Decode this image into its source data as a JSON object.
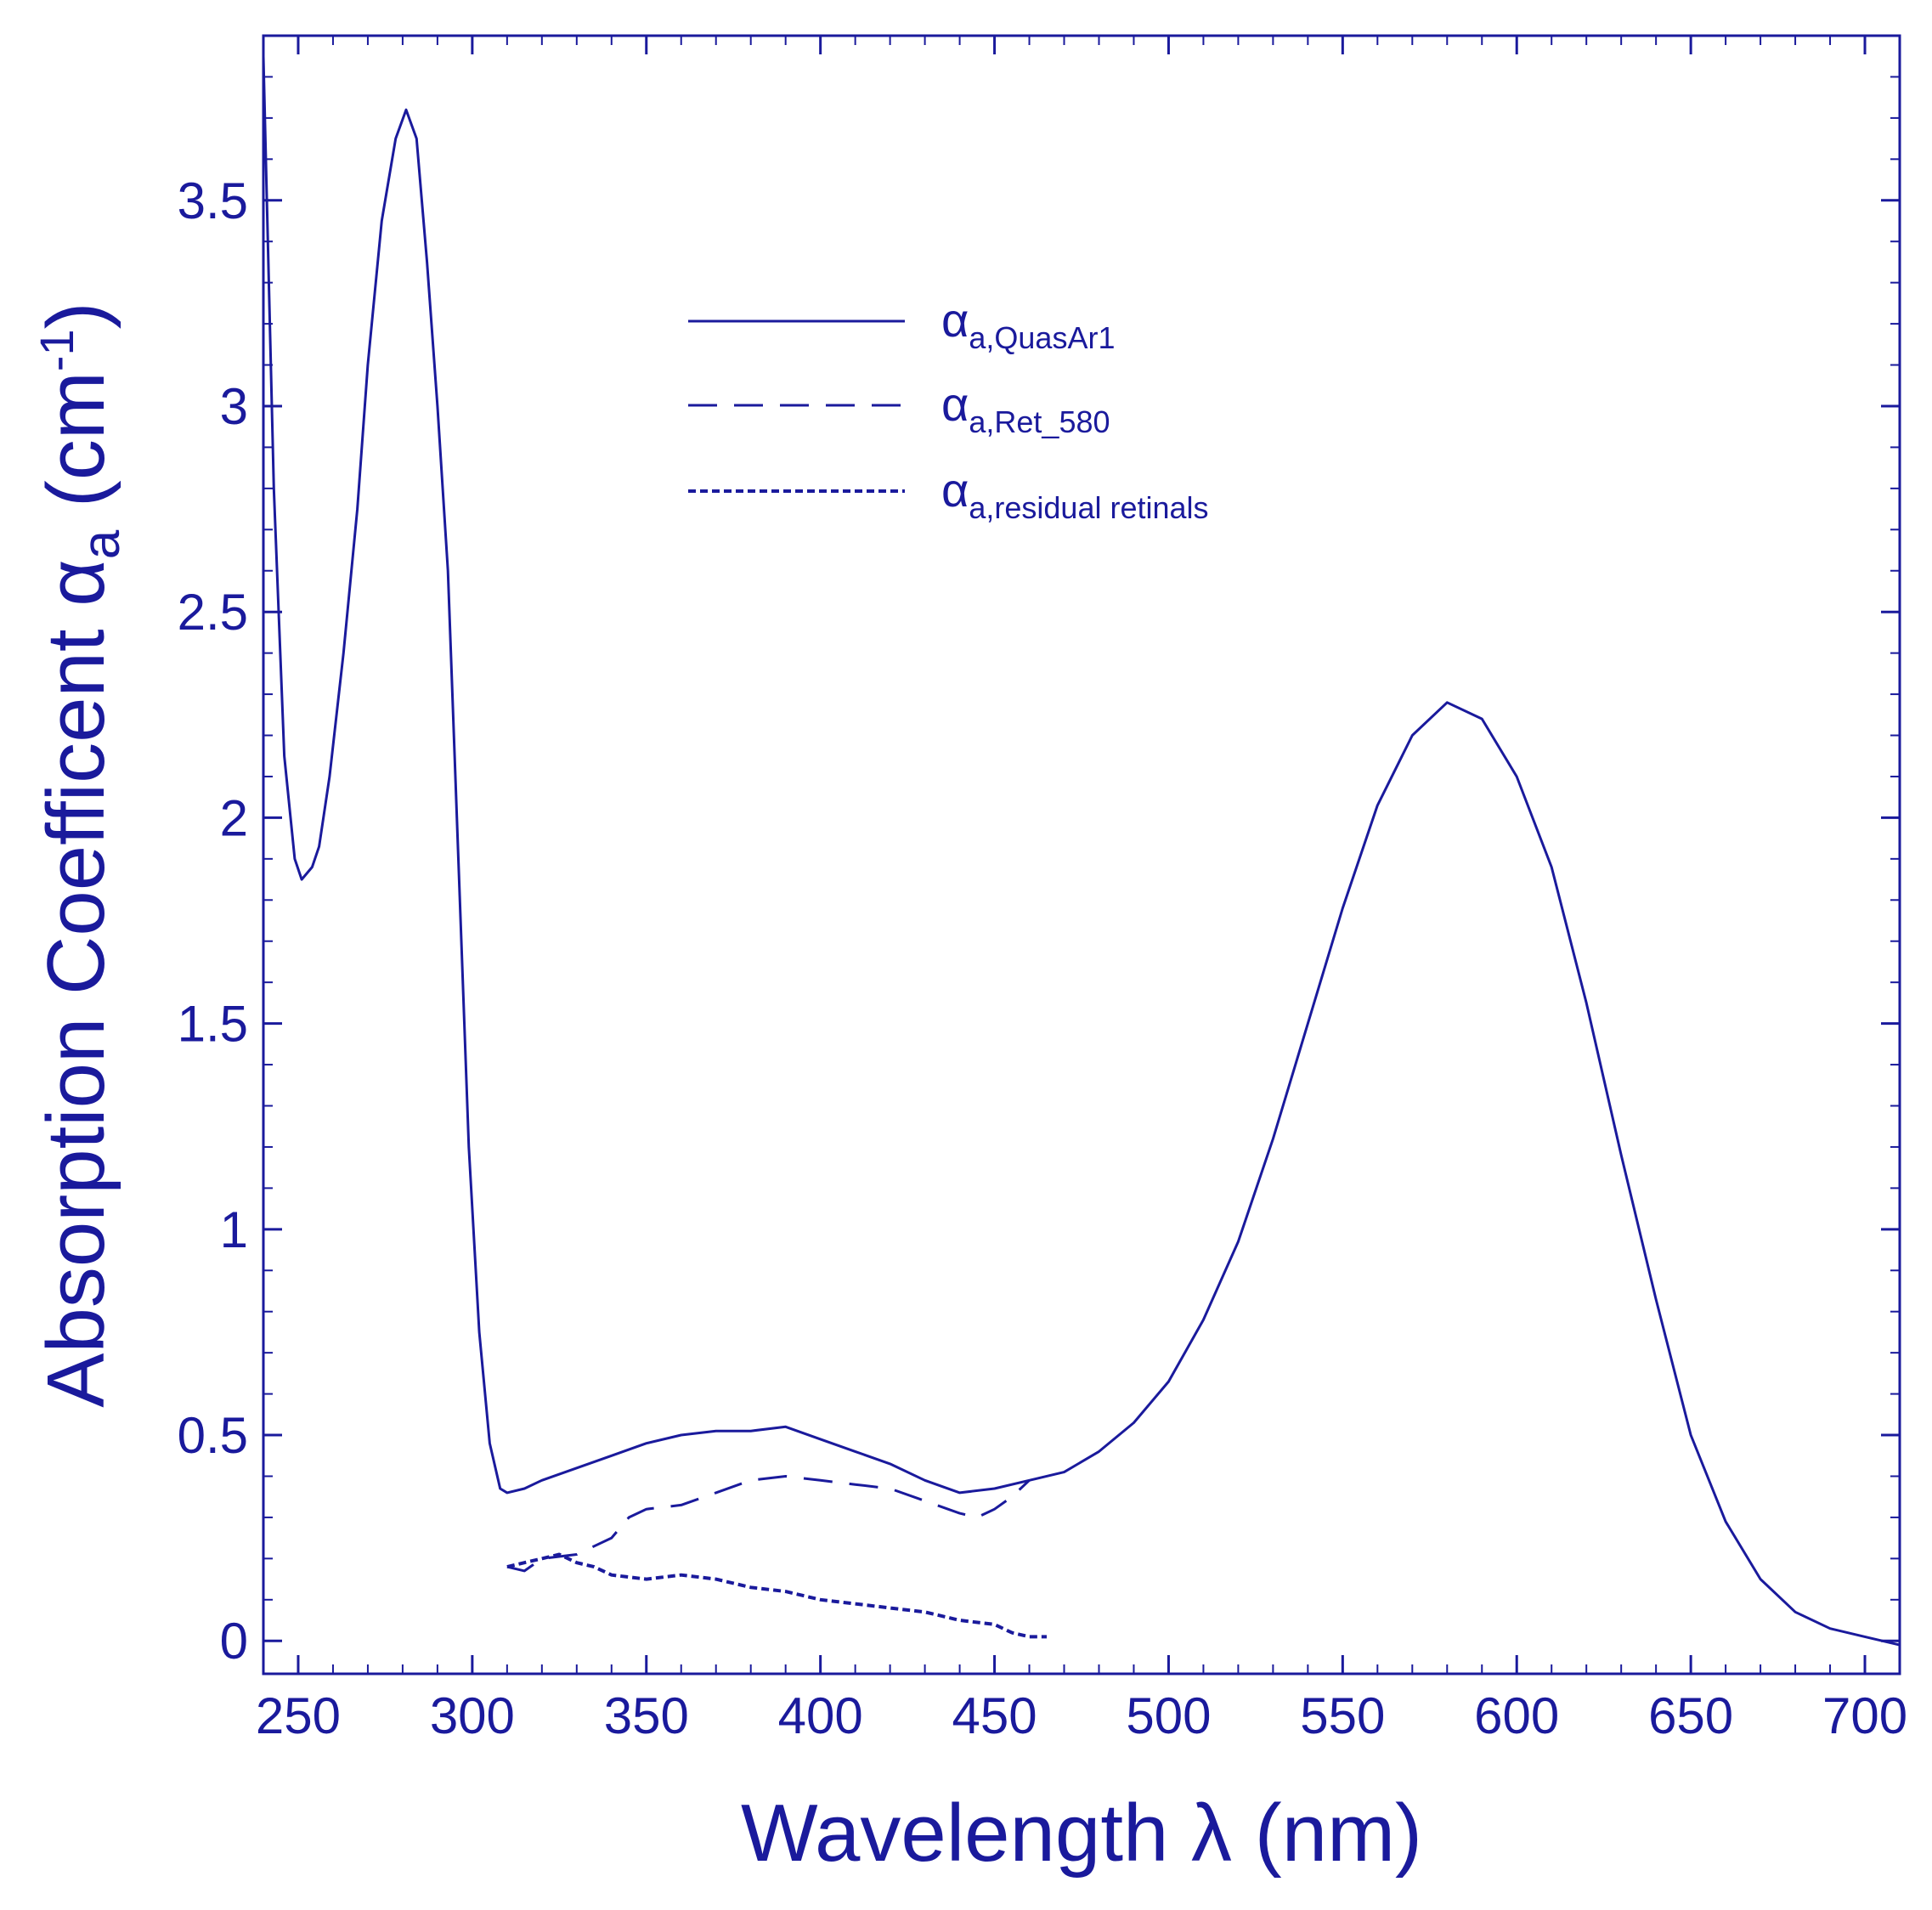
{
  "colors": {
    "ink": "#1a1a9c",
    "background": "#ffffff"
  },
  "chart_data": {
    "type": "line",
    "title": "",
    "xlabel": {
      "main": "Wavelength",
      "symbol": "λ",
      "unit": "(nm)"
    },
    "ylabel": {
      "main": "Absorption Coefficent",
      "symbol": "α",
      "symbol_sub": "a",
      "unit_open": "(cm",
      "unit_sup": "-1",
      "unit_close": ")"
    },
    "xlim": [
      240,
      710
    ],
    "ylim": [
      -0.08,
      3.9
    ],
    "grid": false,
    "legend_position": "top-center",
    "x_ticks": [
      250,
      300,
      350,
      400,
      450,
      500,
      550,
      600,
      650,
      700
    ],
    "x_tick_labels": [
      "250",
      "300",
      "350",
      "400",
      "450",
      "500",
      "550",
      "600",
      "650",
      "700"
    ],
    "y_ticks": [
      0,
      0.5,
      1,
      1.5,
      2,
      2.5,
      3,
      3.5
    ],
    "y_tick_labels": [
      "0",
      "0.5",
      "1",
      "1.5",
      "2",
      "2.5",
      "3",
      "3.5"
    ],
    "series": [
      {
        "name": "α_a,QuasAr1",
        "label_symbol": "α",
        "label_sub": "a,QuasAr1",
        "style": "solid",
        "points": [
          [
            240,
            3.85
          ],
          [
            241,
            3.5
          ],
          [
            243,
            2.8
          ],
          [
            246,
            2.15
          ],
          [
            249,
            1.9
          ],
          [
            251,
            1.85
          ],
          [
            254,
            1.88
          ],
          [
            256,
            1.93
          ],
          [
            259,
            2.1
          ],
          [
            263,
            2.4
          ],
          [
            267,
            2.75
          ],
          [
            270,
            3.1
          ],
          [
            274,
            3.45
          ],
          [
            278,
            3.65
          ],
          [
            281,
            3.72
          ],
          [
            284,
            3.65
          ],
          [
            287,
            3.35
          ],
          [
            290,
            3.0
          ],
          [
            293,
            2.6
          ],
          [
            296,
            1.9
          ],
          [
            299,
            1.2
          ],
          [
            302,
            0.75
          ],
          [
            305,
            0.48
          ],
          [
            308,
            0.37
          ],
          [
            310,
            0.36
          ],
          [
            315,
            0.37
          ],
          [
            320,
            0.39
          ],
          [
            330,
            0.42
          ],
          [
            340,
            0.45
          ],
          [
            350,
            0.48
          ],
          [
            360,
            0.5
          ],
          [
            370,
            0.51
          ],
          [
            380,
            0.51
          ],
          [
            390,
            0.52
          ],
          [
            400,
            0.49
          ],
          [
            410,
            0.46
          ],
          [
            420,
            0.43
          ],
          [
            430,
            0.39
          ],
          [
            440,
            0.36
          ],
          [
            450,
            0.37
          ],
          [
            460,
            0.39
          ],
          [
            470,
            0.41
          ],
          [
            480,
            0.46
          ],
          [
            490,
            0.53
          ],
          [
            500,
            0.63
          ],
          [
            510,
            0.78
          ],
          [
            520,
            0.97
          ],
          [
            530,
            1.22
          ],
          [
            540,
            1.5
          ],
          [
            550,
            1.78
          ],
          [
            560,
            2.03
          ],
          [
            570,
            2.2
          ],
          [
            580,
            2.28
          ],
          [
            590,
            2.24
          ],
          [
            600,
            2.1
          ],
          [
            610,
            1.88
          ],
          [
            620,
            1.55
          ],
          [
            630,
            1.18
          ],
          [
            640,
            0.83
          ],
          [
            650,
            0.5
          ],
          [
            660,
            0.29
          ],
          [
            670,
            0.15
          ],
          [
            680,
            0.07
          ],
          [
            690,
            0.03
          ],
          [
            700,
            0.01
          ],
          [
            710,
            -0.01
          ]
        ]
      },
      {
        "name": "α_a,Ret_580",
        "label_symbol": "α",
        "label_sub": "a,Ret_580",
        "style": "dashed",
        "points": [
          [
            310,
            0.18
          ],
          [
            315,
            0.17
          ],
          [
            320,
            0.2
          ],
          [
            330,
            0.21
          ],
          [
            340,
            0.25
          ],
          [
            345,
            0.3
          ],
          [
            350,
            0.32
          ],
          [
            360,
            0.33
          ],
          [
            370,
            0.36
          ],
          [
            380,
            0.39
          ],
          [
            390,
            0.4
          ],
          [
            400,
            0.39
          ],
          [
            410,
            0.38
          ],
          [
            420,
            0.37
          ],
          [
            430,
            0.34
          ],
          [
            440,
            0.31
          ],
          [
            445,
            0.3
          ],
          [
            450,
            0.32
          ],
          [
            455,
            0.35
          ],
          [
            460,
            0.39
          ]
        ]
      },
      {
        "name": "α_a,residual retinals",
        "label_symbol": "α",
        "label_sub": "a,residual retinals",
        "style": "dotted",
        "points": [
          [
            310,
            0.18
          ],
          [
            315,
            0.19
          ],
          [
            320,
            0.2
          ],
          [
            325,
            0.21
          ],
          [
            330,
            0.19
          ],
          [
            335,
            0.18
          ],
          [
            340,
            0.16
          ],
          [
            350,
            0.15
          ],
          [
            360,
            0.16
          ],
          [
            370,
            0.15
          ],
          [
            380,
            0.13
          ],
          [
            390,
            0.12
          ],
          [
            400,
            0.1
          ],
          [
            410,
            0.09
          ],
          [
            420,
            0.08
          ],
          [
            430,
            0.07
          ],
          [
            440,
            0.05
          ],
          [
            450,
            0.04
          ],
          [
            455,
            0.02
          ],
          [
            460,
            0.01
          ],
          [
            465,
            0.01
          ]
        ]
      }
    ]
  }
}
